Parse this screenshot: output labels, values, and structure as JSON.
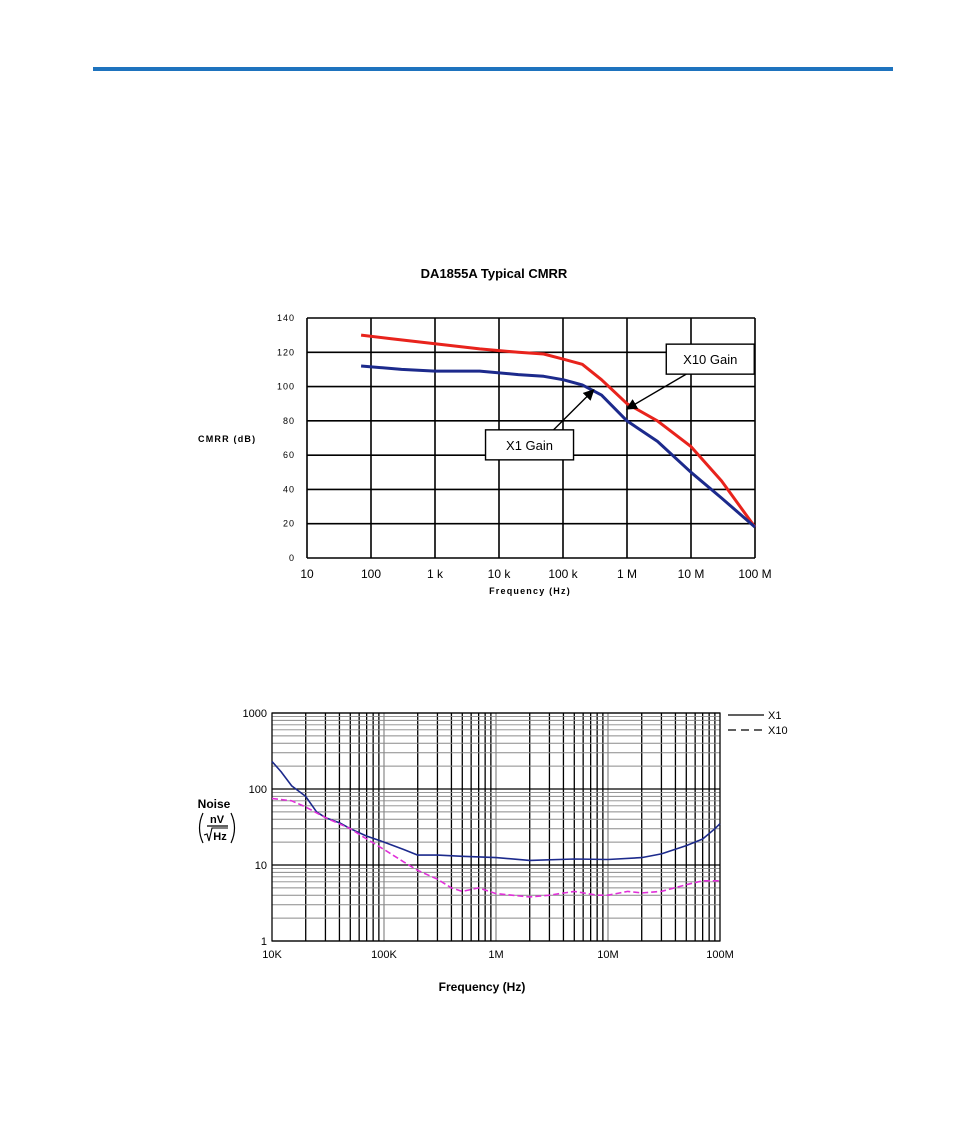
{
  "page": {
    "rule_color": "#1e73be"
  },
  "chart_data": [
    {
      "type": "line",
      "title": "DA1855A Typical CMRR",
      "xlabel": "Frequency (Hz)",
      "ylabel": "CMRR (dB)",
      "xscale": "log",
      "xlim": [
        10,
        100000000
      ],
      "ylim": [
        0,
        140
      ],
      "grid": true,
      "x_tick_values": [
        10,
        100,
        1000,
        10000,
        100000,
        1000000,
        10000000,
        100000000
      ],
      "x_tick_labels": [
        "10",
        "100",
        "1 k",
        "10 k",
        "100 k",
        "1 M",
        "10 M",
        "100 M"
      ],
      "y_ticks": [
        0,
        20,
        40,
        60,
        80,
        100,
        120,
        140
      ],
      "series": [
        {
          "name": "X10 Gain",
          "color": "#e8231c",
          "points": [
            [
              70,
              130
            ],
            [
              200,
              128
            ],
            [
              1000,
              125
            ],
            [
              5000,
              122
            ],
            [
              20000,
              120
            ],
            [
              50000,
              119
            ],
            [
              100000,
              116
            ],
            [
              200000,
              113
            ],
            [
              400000,
              104
            ],
            [
              1000000,
              90
            ],
            [
              3000000,
              80
            ],
            [
              10000000,
              65
            ],
            [
              30000000,
              45
            ],
            [
              100000000,
              18
            ]
          ]
        },
        {
          "name": "X1 Gain",
          "color": "#1c2a8c",
          "points": [
            [
              70,
              112
            ],
            [
              300,
              110
            ],
            [
              1000,
              109
            ],
            [
              5000,
              109
            ],
            [
              20000,
              107
            ],
            [
              50000,
              106
            ],
            [
              100000,
              104
            ],
            [
              200000,
              101
            ],
            [
              400000,
              95
            ],
            [
              1000000,
              80
            ],
            [
              3000000,
              68
            ],
            [
              10000000,
              50
            ],
            [
              30000000,
              35
            ],
            [
              100000000,
              18
            ]
          ]
        }
      ],
      "annotations": [
        {
          "text": "X10 Gain",
          "x": 20000000,
          "y": 116,
          "arrow_to": [
            1000000,
            87
          ]
        },
        {
          "text": "X1 Gain",
          "x": 30000,
          "y": 66,
          "arrow_to": [
            300000,
            98
          ]
        }
      ]
    },
    {
      "type": "line",
      "title": "",
      "xlabel": "Frequency (Hz)",
      "ylabel": "Noise",
      "yunit": {
        "numerator": "nV",
        "denominator": "Hz"
      },
      "xscale": "log",
      "yscale": "log",
      "xlim": [
        10000,
        100000000
      ],
      "ylim": [
        1,
        1000
      ],
      "grid": true,
      "legend_position": "top-right",
      "x_tick_values": [
        10000,
        100000,
        1000000,
        10000000,
        100000000
      ],
      "x_tick_labels": [
        "10K",
        "100K",
        "1M",
        "10M",
        "100M"
      ],
      "y_tick_values": [
        1,
        10,
        100,
        1000
      ],
      "y_tick_labels": [
        "1",
        "10",
        "100",
        "1000"
      ],
      "series": [
        {
          "name": "X1",
          "style": "solid",
          "color": "#1c2a8c",
          "points": [
            [
              10000,
              230
            ],
            [
              12000,
              170
            ],
            [
              15000,
              110
            ],
            [
              20000,
              80
            ],
            [
              25000,
              50
            ],
            [
              30000,
              42
            ],
            [
              40000,
              36
            ],
            [
              50000,
              30
            ],
            [
              70000,
              24
            ],
            [
              100000,
              20
            ],
            [
              150000,
              16
            ],
            [
              200000,
              13.5
            ],
            [
              300000,
              13.5
            ],
            [
              500000,
              13
            ],
            [
              1000000,
              12.5
            ],
            [
              2000000,
              11.5
            ],
            [
              5000000,
              12
            ],
            [
              10000000,
              11.8
            ],
            [
              20000000,
              12.5
            ],
            [
              30000000,
              14
            ],
            [
              50000000,
              18
            ],
            [
              70000000,
              22
            ],
            [
              90000000,
              30
            ],
            [
              100000000,
              35
            ]
          ]
        },
        {
          "name": "X10",
          "style": "dashed",
          "color": "#e030d8",
          "points": [
            [
              10000,
              75
            ],
            [
              15000,
              70
            ],
            [
              20000,
              58
            ],
            [
              30000,
              42
            ],
            [
              50000,
              30
            ],
            [
              70000,
              22
            ],
            [
              100000,
              16
            ],
            [
              150000,
              11
            ],
            [
              200000,
              8.5
            ],
            [
              300000,
              6.5
            ],
            [
              400000,
              5
            ],
            [
              500000,
              4.5
            ],
            [
              700000,
              5
            ],
            [
              1000000,
              4.2
            ],
            [
              2000000,
              3.8
            ],
            [
              3000000,
              4
            ],
            [
              5000000,
              4.5
            ],
            [
              8000000,
              4
            ],
            [
              10000000,
              4
            ],
            [
              15000000,
              4.5
            ],
            [
              20000000,
              4.3
            ],
            [
              30000000,
              4.5
            ],
            [
              50000000,
              5.5
            ],
            [
              70000000,
              6.2
            ],
            [
              100000000,
              6.2
            ]
          ]
        }
      ]
    }
  ]
}
